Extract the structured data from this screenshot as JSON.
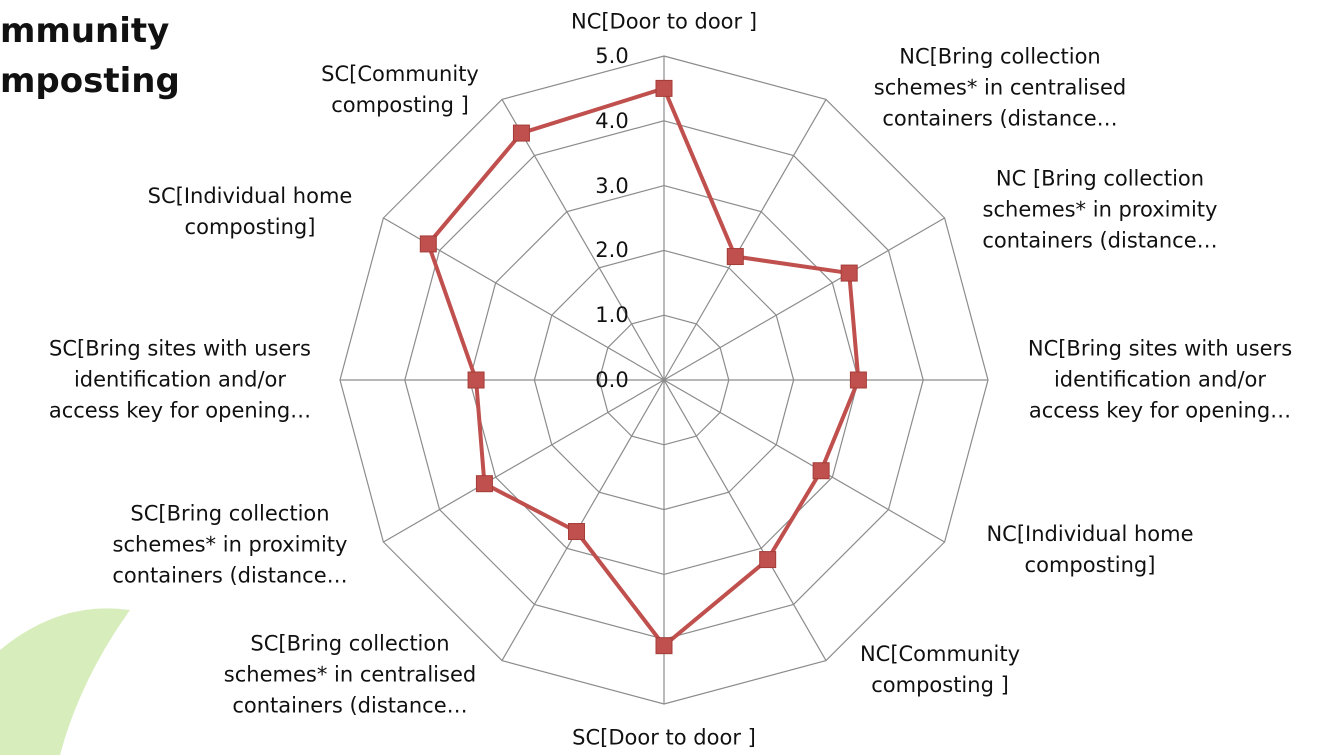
{
  "chart_data": {
    "type": "radar",
    "title": "mmunity\nmposting",
    "categories": [
      "NC[Door to door ]",
      "NC[Bring collection\nschemes* in centralised\ncontainers (distance…",
      "NC [Bring collection\nschemes* in proximity\ncontainers (distance…",
      "NC[Bring sites with users\nidentification and/or\naccess key for opening…",
      "NC[Individual home\ncomposting]",
      "NC[Community\ncomposting ]",
      "SC[Door to door ]",
      "SC[Bring collection\nschemes* in centralised\ncontainers (distance…",
      "SC[Bring collection\nschemes* in proximity\ncontainers (distance…",
      "SC[Bring sites with users\nidentification and/or\naccess key for opening…",
      "SC[Individual home\ncomposting]",
      "SC[Community\ncomposting ]"
    ],
    "values": [
      4.5,
      2.2,
      3.3,
      3.0,
      2.8,
      3.2,
      4.1,
      2.7,
      3.2,
      2.9,
      4.2,
      4.4
    ],
    "color": "#c0504d",
    "ylim": [
      0,
      5
    ],
    "yticks": [
      {
        "value": 0,
        "label": "0.0"
      },
      {
        "value": 1,
        "label": "1.0"
      },
      {
        "value": 2,
        "label": "2.0"
      },
      {
        "value": 3,
        "label": "3.0"
      },
      {
        "value": 4,
        "label": "4.0"
      },
      {
        "value": 5,
        "label": "5.0"
      }
    ],
    "grid": true
  }
}
